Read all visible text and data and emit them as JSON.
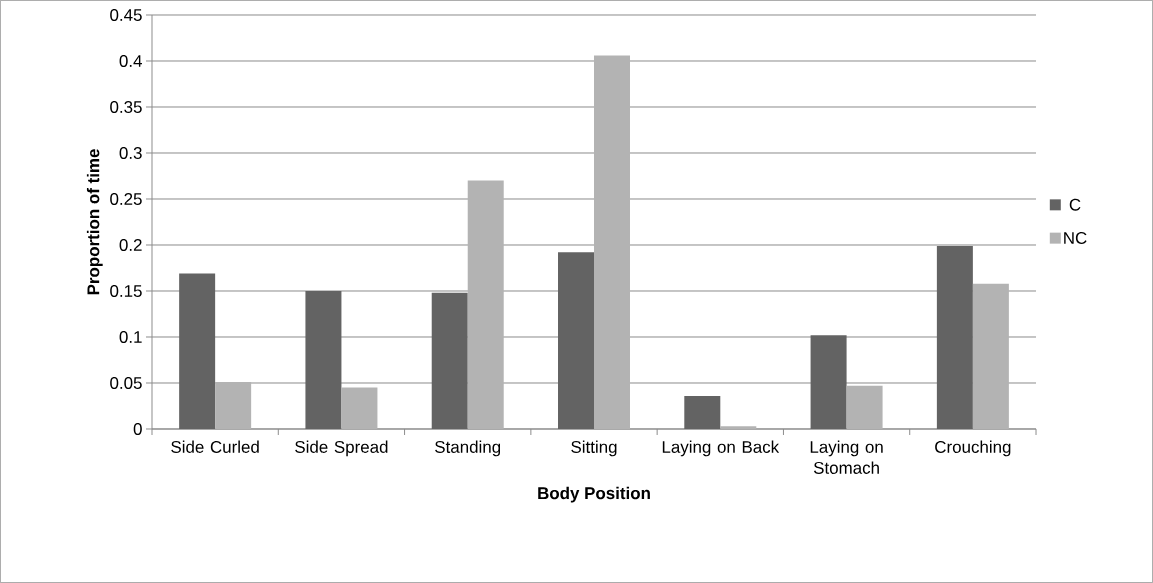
{
  "chart_data": {
    "type": "bar",
    "xlabel": "Body Position",
    "ylabel": "Proportion of time",
    "categories": [
      "Side Curled",
      "Side Spread",
      "Standing",
      "Sitting",
      "Laying on Back",
      "Laying on Stomach",
      "Crouching"
    ],
    "series": [
      {
        "name": "C",
        "color": "#636363",
        "values": [
          0.169,
          0.15,
          0.148,
          0.192,
          0.036,
          0.102,
          0.199
        ]
      },
      {
        "name": "NC",
        "color": "#b3b3b3",
        "values": [
          0.051,
          0.045,
          0.27,
          0.406,
          0.003,
          0.047,
          0.158
        ]
      }
    ],
    "ylim": [
      0,
      0.45
    ],
    "yticks": [
      0,
      0.05,
      0.1,
      0.15,
      0.2,
      0.25,
      0.3,
      0.35,
      0.4,
      0.45
    ],
    "grid": "y",
    "legend": "right"
  }
}
